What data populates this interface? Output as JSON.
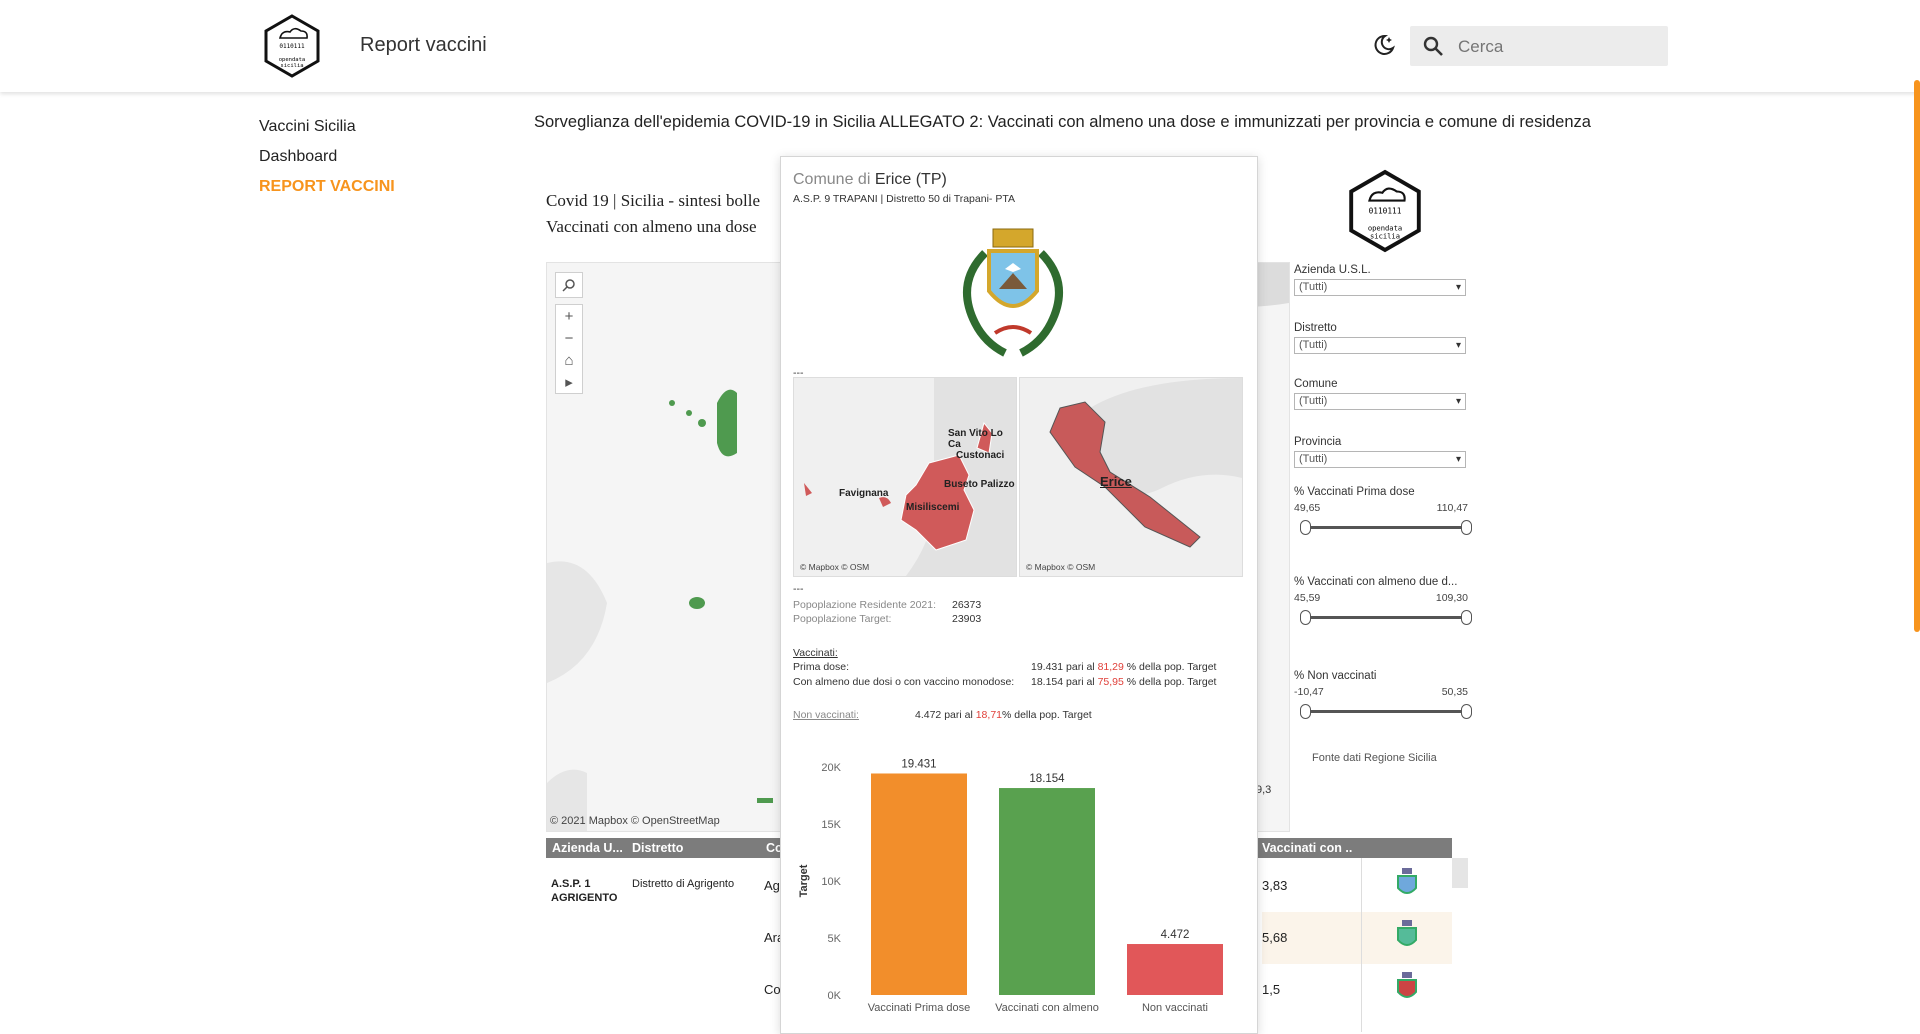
{
  "header": {
    "site_title": "Report vaccini",
    "search_placeholder": "Cerca",
    "logo_text": "opendata sicilia"
  },
  "sidebar": {
    "items": [
      {
        "label": "Vaccini Sicilia",
        "active": false
      },
      {
        "label": "Dashboard",
        "active": false
      },
      {
        "label": "REPORT VACCINI",
        "active": true
      }
    ]
  },
  "main": {
    "title": "Sorveglianza dell'epidemia COVID-19 in Sicilia ALLEGATO 2: Vaccinati con almeno una dose e immunizzati per provincia e comune di residenza",
    "viz_head_line1": "Covid 19 | Sicilia - sintesi bolle",
    "viz_head_line2": "Vaccinati con almeno una dose",
    "map_attribution": "© 2021 Mapbox  © OpenStreetMap",
    "edge_value": "9,3"
  },
  "filters": {
    "items": [
      {
        "label": "Azienda U.S.L.",
        "value": "(Tutti)"
      },
      {
        "label": "Distretto",
        "value": "(Tutti)"
      },
      {
        "label": "Comune",
        "value": "(Tutti)"
      },
      {
        "label": "Provincia",
        "value": "(Tutti)"
      }
    ],
    "sliders": [
      {
        "label": "% Vaccinati Prima dose",
        "min": "49,65",
        "max": "110,47"
      },
      {
        "label": "% Vaccinati con almeno due d...",
        "min": "45,59",
        "max": "109,30"
      },
      {
        "label": "% Non vaccinati",
        "min": "-10,47",
        "max": "50,35"
      }
    ],
    "source": "Fonte dati Regione Sicilia"
  },
  "table": {
    "headers": [
      "Azienda U...",
      "Distretto",
      "Co",
      "Vaccinati con .."
    ],
    "asp": "A.S.P. 1",
    "asp2": "AGRIGENTO",
    "distretto": "Distretto di Agrigento",
    "comuni_partial": [
      "Ag",
      "Ara",
      "Co"
    ],
    "values_partial": [
      "3,83",
      "5,68",
      "1,5"
    ]
  },
  "tooltip": {
    "title_prefix": "Comune di ",
    "title_name": "Erice (TP)",
    "subtitle": "A.S.P. 9 TRAPANI | Distretto 50 di Trapani- PTA",
    "sep": "---",
    "map_labels": [
      "San Vito Lo Ca",
      "Custonaci",
      "Buseto Palizzo",
      "Favignana",
      "Misiliscemi"
    ],
    "map_credit": "© Mapbox © OSM",
    "map2_label": "Erice",
    "pop_resident_label": "Popoplazione Residente 2021:",
    "pop_resident": "26373",
    "pop_target_label": "Popoplazione Target:",
    "pop_target": "23903",
    "vaccinati_label": "Vaccinati:",
    "prima_label": "Prima dose:",
    "prima_text": "19.431 pari al",
    "prima_pct": "81,29",
    "almeno_label": "Con almeno due dosi o con vaccino monodose:",
    "almeno_text": "18.154 pari al",
    "almeno_pct": "75,95",
    "pct_suffix": "% della pop. Target",
    "nonvacc_label": "Non vaccinati:",
    "nonvacc_text": "4.472 pari al",
    "nonvacc_pct": "18,71",
    "nonvacc_suffix": "%  della pop. Target"
  },
  "chart_data": {
    "type": "bar",
    "categories": [
      "Vaccinati Prima dose",
      "Vaccinati con almeno",
      "Non vaccinati"
    ],
    "values": [
      19431,
      18154,
      4472
    ],
    "data_labels": [
      "19.431",
      "18.154",
      "4.472"
    ],
    "colors": [
      "#f28e2b",
      "#59a14f",
      "#e15759"
    ],
    "ylabel": "Target",
    "yticks": [
      "0K",
      "5K",
      "10K",
      "15K",
      "20K"
    ],
    "ylim": [
      0,
      20000
    ],
    "grid": false
  }
}
